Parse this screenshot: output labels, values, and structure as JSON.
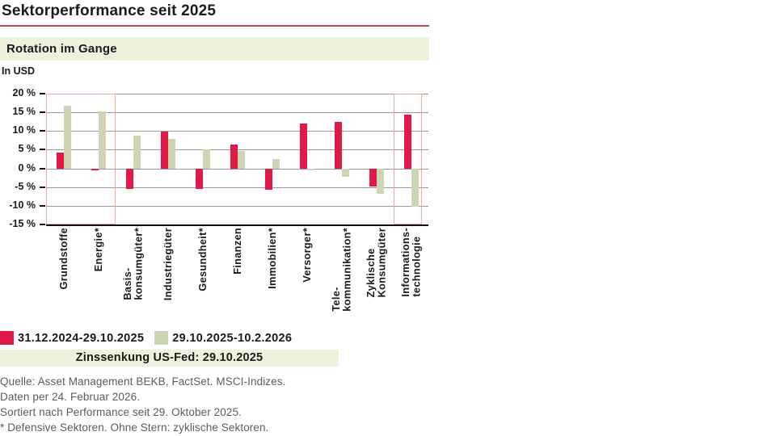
{
  "header": {
    "title": "Sektorperformance seit 2025",
    "subtitle_band": "Rotation im Gange",
    "unit_label": "In USD"
  },
  "chart_data": {
    "type": "bar",
    "title": "Rotation im Gange",
    "ylabel": "In USD",
    "categories": [
      "Grundstoffe",
      "Energie*",
      "Basis-\nkonsumgüter*",
      "Industriegüter",
      "Gesundheit*",
      "Finanzen",
      "Immobilien*",
      "Versorger*",
      "Tele-\nkommunikation*",
      "Zyklische\nKonsumgüter",
      "Informations-\ntechnologie"
    ],
    "series": [
      {
        "name": "31.12.2024-29.10.2025",
        "color": "#e01949",
        "values": [
          4.2,
          -0.5,
          -5.4,
          9.8,
          -5.5,
          6.3,
          -5.8,
          12.0,
          12.5,
          -4.8,
          14.4
        ]
      },
      {
        "name": "29.10.2025-10.2.2026",
        "color": "#ccd6b2",
        "values": [
          16.8,
          15.3,
          8.8,
          8.0,
          5.1,
          4.7,
          2.4,
          -0.6,
          -2.2,
          -6.9,
          -10.3
        ]
      }
    ],
    "ylim": [
      -15,
      20
    ],
    "ytick_step": 5,
    "ytick_suffix": " %",
    "grid": true,
    "legend_position": "bottom",
    "highlight_boxes": [
      {
        "from": 0,
        "to": 1
      },
      {
        "from": 10,
        "to": 10
      }
    ],
    "annotation_band": "Zinssenkung US-Fed: 29.10.2025"
  },
  "footer": {
    "lines": [
      "Quelle: Asset Management BEKB, FactSet. MSCI-Indizes.",
      "Daten per 24. Februar 2026.",
      "Sortiert nach Performance seit 29. Oktober 2025.",
      "* Defensive Sektoren. Ohne Stern: zyklische Sektoren."
    ]
  },
  "colors": {
    "rule": "#c64256",
    "bandbg": "#edf2dc",
    "grid": "#9a9a9a",
    "boxline": "#f0a9a0",
    "ink": "#1a1a1a",
    "muted": "#5c5c5c"
  }
}
